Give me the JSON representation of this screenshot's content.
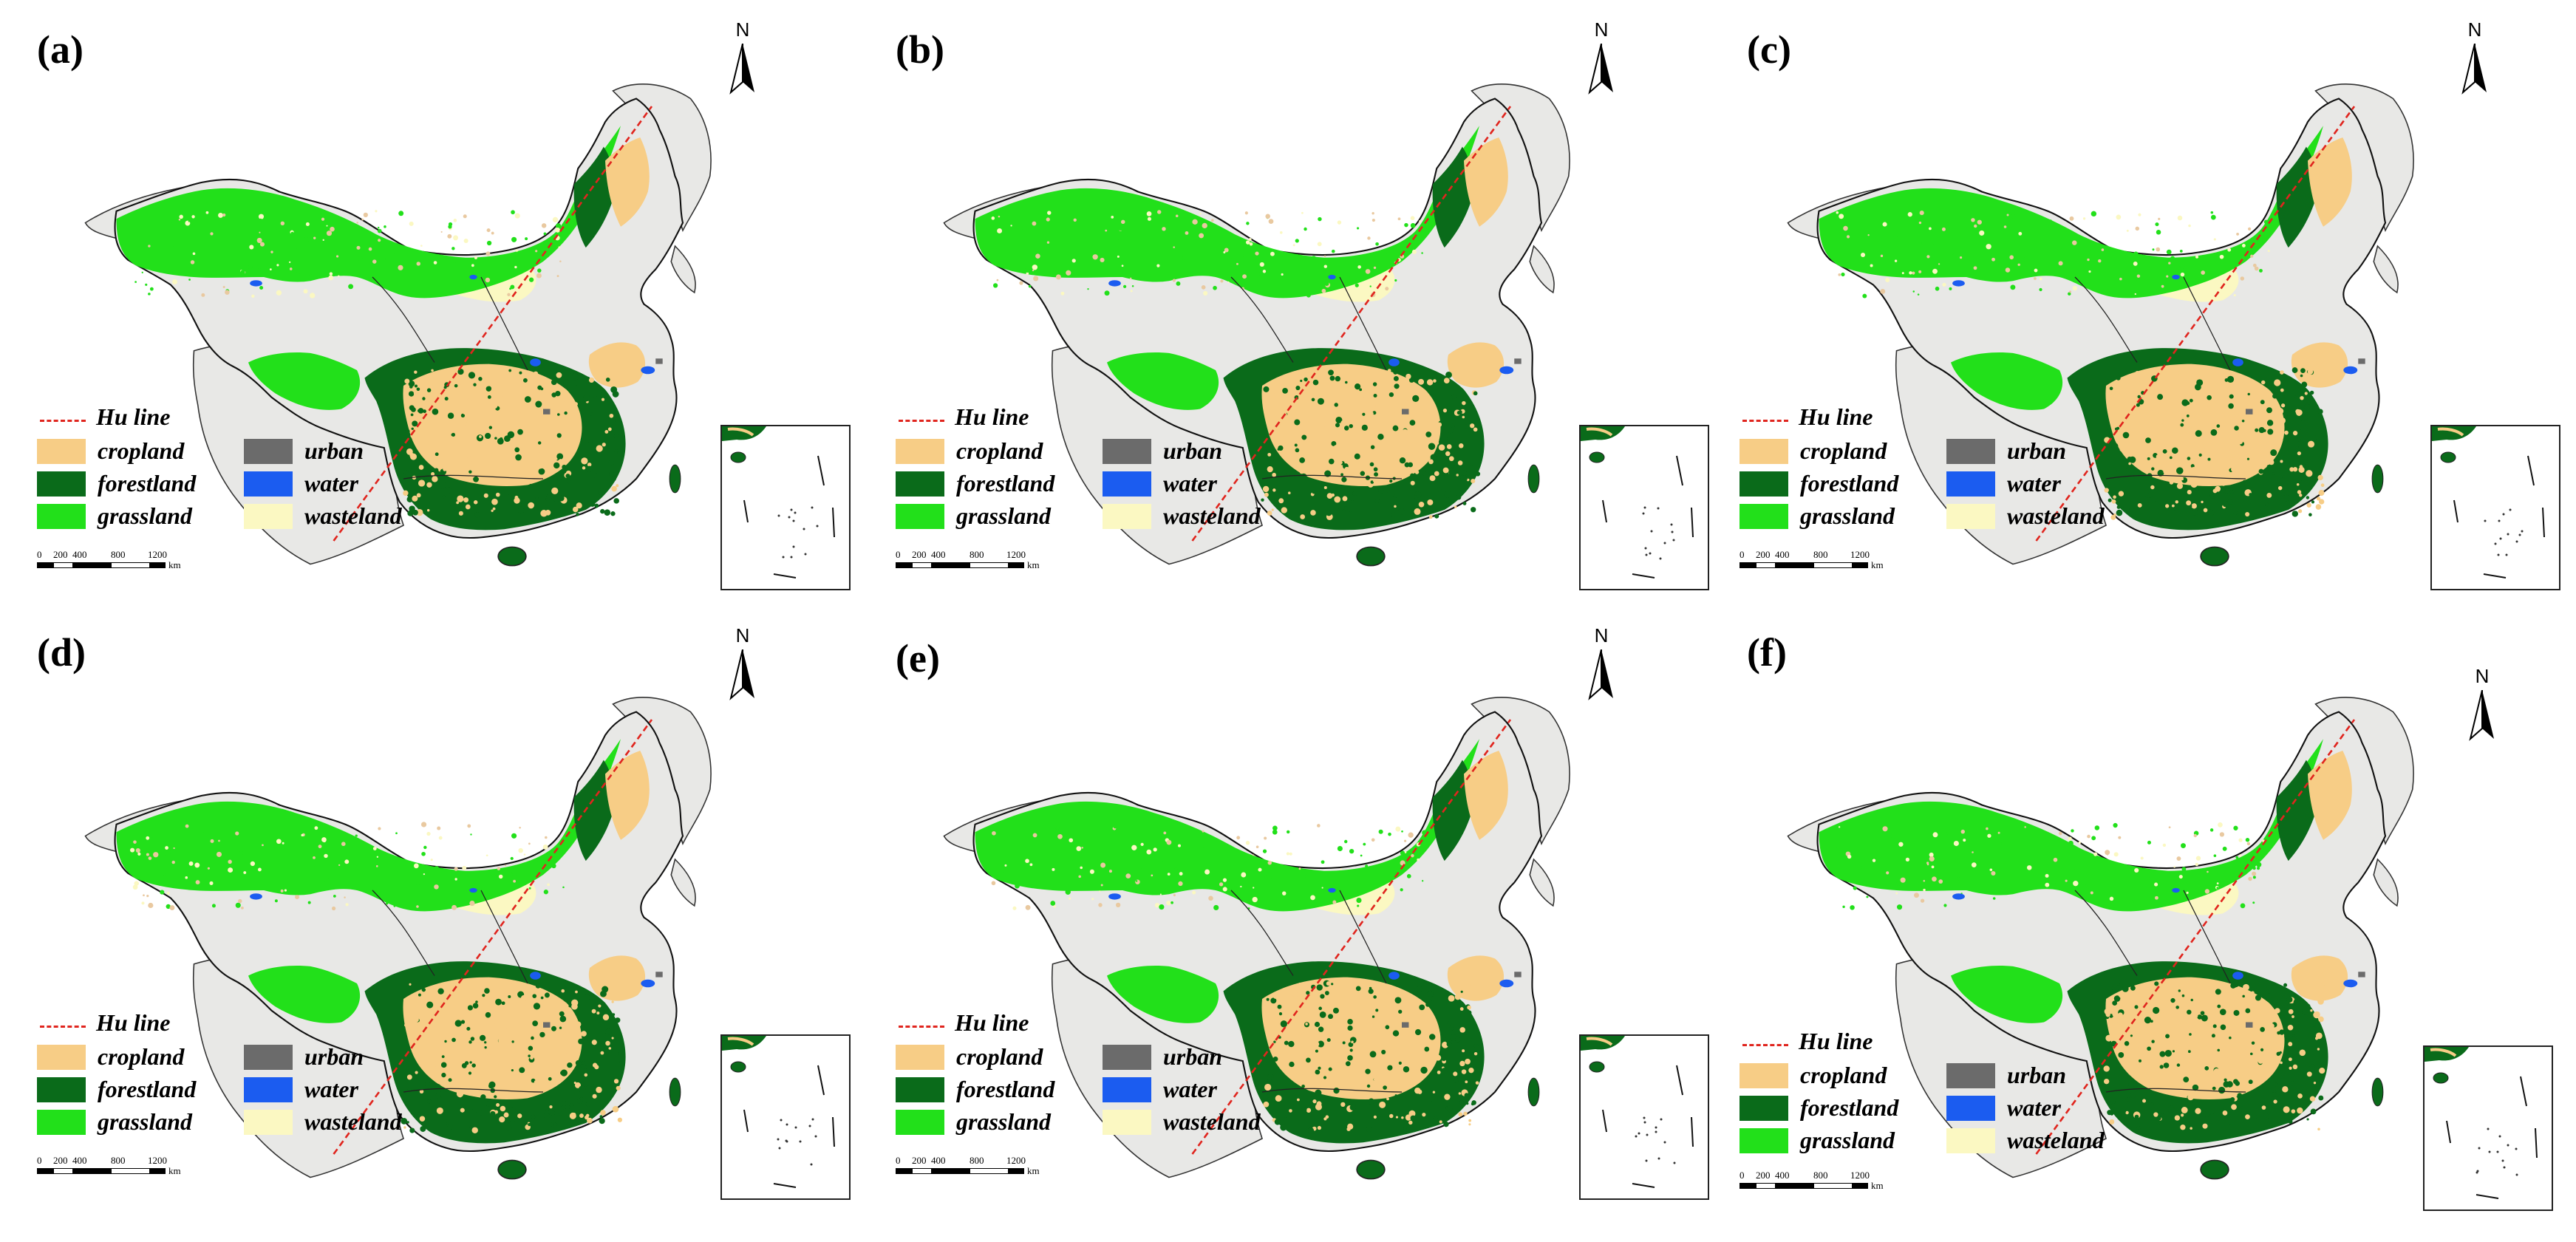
{
  "panels": [
    {
      "label": "(a)"
    },
    {
      "label": "(b)"
    },
    {
      "label": "(c)"
    },
    {
      "label": "(d)"
    },
    {
      "label": "(e)"
    },
    {
      "label": "(f)"
    }
  ],
  "north_arrow": {
    "letter": "N"
  },
  "legend": {
    "hu_line": "Hu line",
    "items": [
      {
        "label": "cropland",
        "color": "#f7cd86"
      },
      {
        "label": "urban",
        "color": "#6b6b6b"
      },
      {
        "label": "forestland",
        "color": "#0a6b1a"
      },
      {
        "label": "water",
        "color": "#1b5cf0"
      },
      {
        "label": "grassland",
        "color": "#22e01a"
      },
      {
        "label": "wasteland",
        "color": "#fbf8c2"
      }
    ],
    "hu_color": "#e0251e"
  },
  "scale_bar": {
    "ticks": [
      "0",
      "200",
      "400",
      "800",
      "1200"
    ],
    "unit": "km"
  },
  "colors": {
    "background_land": "#e8e8e6",
    "cropland": "#f7cd86",
    "forestland": "#0a6b1a",
    "grassland": "#22e01a",
    "wasteland": "#fbf8c2",
    "water": "#1b5cf0",
    "urban": "#6b6b6b",
    "hu_line": "#e0251e"
  }
}
